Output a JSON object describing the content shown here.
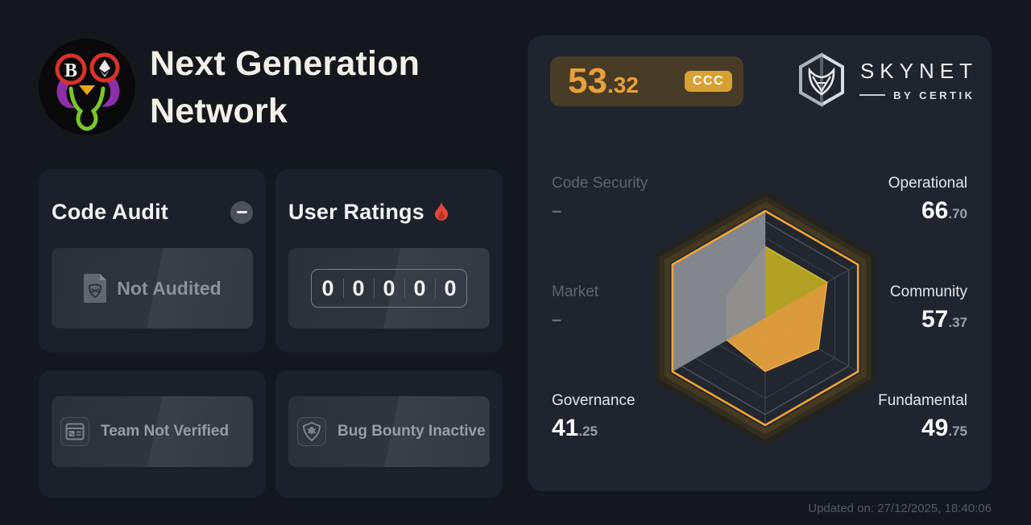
{
  "header": {
    "title": "Next Generation Network",
    "logo": "project-avatar"
  },
  "cards": {
    "code_audit": {
      "title": "Code Audit",
      "collapse_icon": "minus-icon",
      "status": "Not Audited",
      "status_icon": "audit-document-icon"
    },
    "user_ratings": {
      "title": "User Ratings",
      "title_icon": "flame-icon",
      "digits": [
        "0",
        "0",
        "0",
        "0",
        "0"
      ]
    },
    "team": {
      "status": "Team Not Verified",
      "status_icon": "id-card-icon"
    },
    "bug_bounty": {
      "status": "Bug Bounty Inactive",
      "status_icon": "bug-shield-icon"
    }
  },
  "skynet": {
    "score_int": "53",
    "score_dec": ".32",
    "grade": "CCC",
    "brand": "SKYNET",
    "brand_sub": "BY CERTIK",
    "updated": "Updated on: 27/12/2025, 18:40:06",
    "accent_color": "#e7a13a",
    "grade_bg": "#d8a134"
  },
  "metrics": {
    "code_security": {
      "label": "Code Security",
      "value": "–"
    },
    "market": {
      "label": "Market",
      "value": "–"
    },
    "governance": {
      "label": "Governance",
      "int": "41",
      "dec": ".25"
    },
    "operational": {
      "label": "Operational",
      "int": "66",
      "dec": ".70"
    },
    "community": {
      "label": "Community",
      "int": "57",
      "dec": ".37"
    },
    "fundamental": {
      "label": "Fundamental",
      "int": "49",
      "dec": ".75"
    }
  },
  "chart_data": {
    "type": "radar",
    "max": 100,
    "axes": [
      {
        "label": "Code Security",
        "value": null,
        "angle_deg": 90
      },
      {
        "label": "Operational",
        "value": 66.7,
        "angle_deg": 30
      },
      {
        "label": "Community",
        "value": 57.37,
        "angle_deg": -30
      },
      {
        "label": "Fundamental",
        "value": 49.75,
        "angle_deg": -90
      },
      {
        "label": "Governance",
        "value": 41.25,
        "angle_deg": -150
      },
      {
        "label": "Market",
        "value": null,
        "angle_deg": 150
      }
    ],
    "na_region_angles": [
      90,
      150,
      210
    ],
    "grid": true,
    "ring_levels": [
      0.25,
      0.5,
      0.75,
      0.9
    ],
    "outline_color": "#f0a636",
    "score_fill_color": "#e8a23c",
    "score_edge_color": "#f1af45",
    "top_sector_fill": "#b2a124",
    "top_sector_edge": "#cdb92f",
    "na_fill_color": "#8b8e95",
    "glow_colors": [
      "#453a21",
      "#322d1e",
      "#25231d"
    ]
  }
}
